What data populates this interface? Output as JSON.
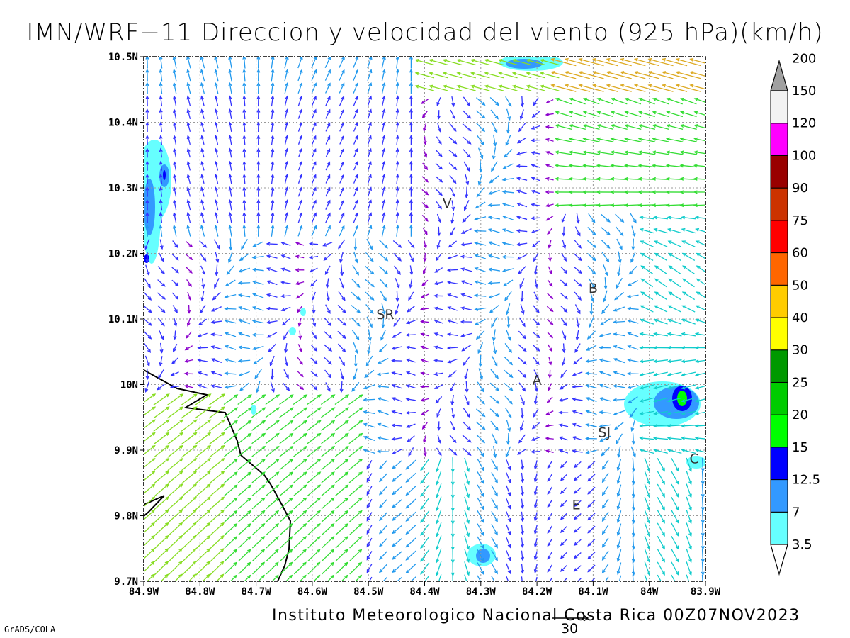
{
  "title": "IMN/WRF−11 Direccion y velocidad del viento (925 hPa)(km/h)",
  "credit": "Instituto Meteorologico Nacional Costa Rica 00Z07NOV2023",
  "software": "GrADS/COLA",
  "reference_vector": {
    "label": "30",
    "value": 30
  },
  "axes": {
    "lon_ticks": [
      "84.9W",
      "84.8W",
      "84.7W",
      "84.6W",
      "84.5W",
      "84.4W",
      "84.3W",
      "84.2W",
      "84.1W",
      "84W",
      "83.9W"
    ],
    "lat_ticks": [
      "10.5N",
      "10.4N",
      "10.3N",
      "10.2N",
      "10.1N",
      "10N",
      "9.9N",
      "9.8N",
      "9.7N"
    ],
    "lon_range": [
      -84.9,
      -83.9
    ],
    "lat_range": [
      9.7,
      10.5
    ],
    "grid": true
  },
  "stations": [
    {
      "label": "V",
      "lon": -84.36,
      "lat": 10.27
    },
    {
      "label": "B",
      "lon": -84.1,
      "lat": 10.14
    },
    {
      "label": "SR",
      "lon": -84.47,
      "lat": 10.1
    },
    {
      "label": "A",
      "lon": -84.2,
      "lat": 10.0
    },
    {
      "label": "SJ",
      "lon": -84.08,
      "lat": 9.92
    },
    {
      "label": "C",
      "lon": -83.92,
      "lat": 9.88
    },
    {
      "label": "E",
      "lon": -84.13,
      "lat": 9.81
    }
  ],
  "colorbar": {
    "levels": [
      "3.5",
      "7",
      "12.5",
      "15",
      "20",
      "25",
      "30",
      "40",
      "50",
      "60",
      "75",
      "90",
      "100",
      "120",
      "150",
      "200"
    ],
    "colors": [
      "#66ffff",
      "#3399ff",
      "#0000ff",
      "#00ff00",
      "#00cc00",
      "#009900",
      "#ffff00",
      "#ffcc00",
      "#ff6600",
      "#ff0000",
      "#cc3300",
      "#990000",
      "#ff00ff",
      "#9933cc",
      "#f2f2f2",
      "#a0a0a0"
    ]
  },
  "speed_colors": {
    "calm": "#8b00cc",
    "light": "#3333ff",
    "moderate": "#2299ee",
    "fresh": "#11cccc",
    "strong": "#33dd33",
    "very_strong": "#88dd22",
    "high": "#ddaa22"
  },
  "chart_data": {
    "type": "map",
    "field": "wind direction and speed at 925 hPa",
    "units": "km/h",
    "shaded_wind_speed_regions": [
      {
        "area": "northwest edge (84.9W,10.3N)",
        "max_class": "12.5"
      },
      {
        "area": "north center (84.25W,10.5N)",
        "max_class": "7"
      },
      {
        "area": "east (83.95W,9.98N)",
        "max_class": "20"
      },
      {
        "area": "south center (84.3W,9.75N)",
        "max_class": "7"
      },
      {
        "area": "southeast edge (83.92W,9.88N)",
        "max_class": "3.5"
      }
    ]
  }
}
